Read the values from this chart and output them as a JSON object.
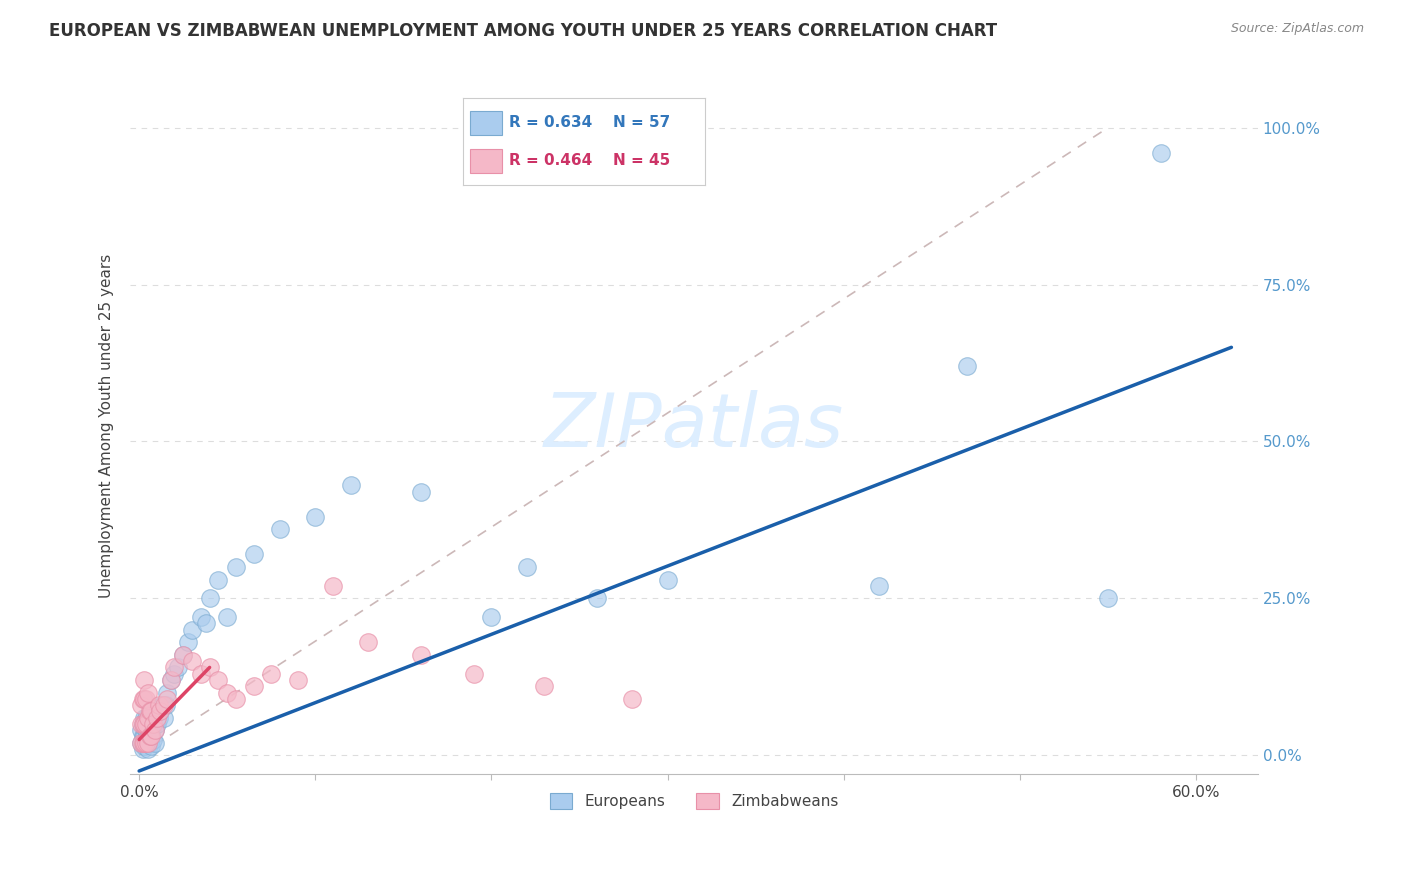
{
  "title": "EUROPEAN VS ZIMBABWEAN UNEMPLOYMENT AMONG YOUTH UNDER 25 YEARS CORRELATION CHART",
  "source": "Source: ZipAtlas.com",
  "ylabel": "Unemployment Among Youth under 25 years",
  "x_tick_positions": [
    0.0,
    0.1,
    0.2,
    0.3,
    0.4,
    0.5,
    0.6
  ],
  "x_tick_labels": [
    "0.0%",
    "",
    "",
    "",
    "",
    "",
    "60.0%"
  ],
  "y_tick_positions": [
    0.0,
    0.25,
    0.5,
    0.75,
    1.0
  ],
  "y_tick_labels": [
    "0.0%",
    "25.0%",
    "50.0%",
    "75.0%",
    "100.0%"
  ],
  "xlim": [
    -0.005,
    0.635
  ],
  "ylim": [
    -0.03,
    1.08
  ],
  "european_R": 0.634,
  "european_N": 57,
  "zimbabwean_R": 0.464,
  "zimbabwean_N": 45,
  "european_color": "#aaccee",
  "european_edge_color": "#7aaad0",
  "zimbabwean_color": "#f5b8c8",
  "zimbabwean_edge_color": "#e890a8",
  "european_line_color": "#1a5faa",
  "zimbabwean_line_color": "#dd4466",
  "ref_line_color": "#ccb8b8",
  "background_color": "#ffffff",
  "watermark_color": "#ddeeff",
  "european_x": [
    0.001,
    0.001,
    0.002,
    0.002,
    0.002,
    0.003,
    0.003,
    0.003,
    0.003,
    0.004,
    0.004,
    0.004,
    0.005,
    0.005,
    0.005,
    0.006,
    0.006,
    0.006,
    0.007,
    0.007,
    0.007,
    0.008,
    0.008,
    0.009,
    0.009,
    0.01,
    0.011,
    0.012,
    0.013,
    0.014,
    0.015,
    0.016,
    0.018,
    0.02,
    0.022,
    0.025,
    0.028,
    0.03,
    0.035,
    0.038,
    0.04,
    0.045,
    0.05,
    0.055,
    0.065,
    0.08,
    0.1,
    0.12,
    0.16,
    0.2,
    0.22,
    0.26,
    0.3,
    0.42,
    0.47,
    0.55,
    0.58
  ],
  "european_y": [
    0.02,
    0.04,
    0.01,
    0.03,
    0.05,
    0.015,
    0.03,
    0.045,
    0.06,
    0.02,
    0.04,
    0.06,
    0.01,
    0.03,
    0.05,
    0.02,
    0.04,
    0.06,
    0.015,
    0.035,
    0.055,
    0.025,
    0.045,
    0.02,
    0.04,
    0.05,
    0.06,
    0.07,
    0.08,
    0.06,
    0.08,
    0.1,
    0.12,
    0.13,
    0.14,
    0.16,
    0.18,
    0.2,
    0.22,
    0.21,
    0.25,
    0.28,
    0.22,
    0.3,
    0.32,
    0.36,
    0.38,
    0.43,
    0.42,
    0.22,
    0.3,
    0.25,
    0.28,
    0.27,
    0.62,
    0.25,
    0.96
  ],
  "zimbabwean_x": [
    0.001,
    0.001,
    0.001,
    0.002,
    0.002,
    0.002,
    0.003,
    0.003,
    0.003,
    0.003,
    0.004,
    0.004,
    0.004,
    0.005,
    0.005,
    0.005,
    0.006,
    0.006,
    0.007,
    0.007,
    0.008,
    0.009,
    0.01,
    0.011,
    0.012,
    0.014,
    0.016,
    0.018,
    0.02,
    0.025,
    0.03,
    0.035,
    0.04,
    0.045,
    0.05,
    0.055,
    0.065,
    0.075,
    0.09,
    0.11,
    0.13,
    0.16,
    0.19,
    0.23,
    0.28
  ],
  "zimbabwean_y": [
    0.02,
    0.05,
    0.08,
    0.02,
    0.05,
    0.09,
    0.02,
    0.05,
    0.09,
    0.12,
    0.02,
    0.05,
    0.09,
    0.02,
    0.06,
    0.1,
    0.03,
    0.07,
    0.03,
    0.07,
    0.05,
    0.04,
    0.06,
    0.08,
    0.07,
    0.08,
    0.09,
    0.12,
    0.14,
    0.16,
    0.15,
    0.13,
    0.14,
    0.12,
    0.1,
    0.09,
    0.11,
    0.13,
    0.12,
    0.27,
    0.18,
    0.16,
    0.13,
    0.11,
    0.09
  ],
  "eu_line_x0": 0.0,
  "eu_line_y0": -0.025,
  "eu_line_x1": 0.62,
  "eu_line_y1": 0.65,
  "zim_line_x0": 0.0,
  "zim_line_y0": 0.025,
  "zim_line_x1": 0.04,
  "zim_line_y1": 0.14,
  "ref_line_x0": 0.0,
  "ref_line_y0": 0.0,
  "ref_line_x1": 0.55,
  "ref_line_y1": 1.0
}
